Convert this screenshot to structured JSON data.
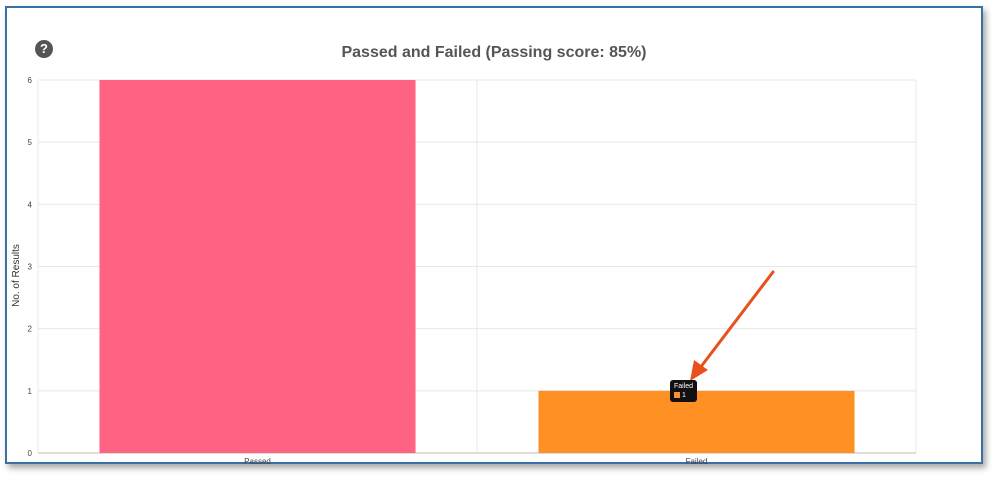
{
  "help_icon": {
    "glyph": "?"
  },
  "chart_data": {
    "type": "bar",
    "title": "Passed and Failed (Passing score: 85%)",
    "ylabel": "No. of Results",
    "xlabel": "",
    "categories": [
      "Passed",
      "Failed"
    ],
    "values": [
      6,
      1
    ],
    "colors": [
      "#ff6384",
      "#ff9124"
    ],
    "ylim": [
      0,
      6
    ],
    "yticks": [
      0,
      1,
      2,
      3,
      4,
      5,
      6
    ],
    "grid": true
  },
  "tooltip": {
    "label": "Failed",
    "value": "1",
    "color": "#ff9124"
  },
  "annotation": {
    "type": "arrow",
    "color": "#e8501c"
  }
}
